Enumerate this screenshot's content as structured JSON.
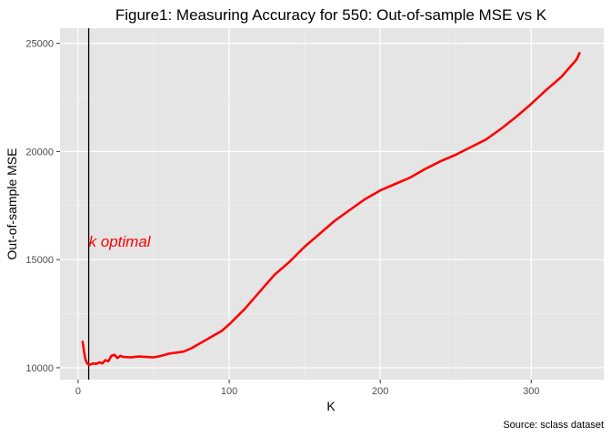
{
  "chart_data": {
    "type": "line",
    "title": "Figure1: Measuring Accuracy for 550: Out-of-sample MSE vs K",
    "xlabel": "K",
    "ylabel": "Out-of-sample MSE",
    "caption": "Source: sclass dataset",
    "xlim": [
      -12,
      348
    ],
    "ylim": [
      9450,
      25700
    ],
    "x_ticks": [
      0,
      100,
      200,
      300
    ],
    "y_ticks": [
      10000,
      15000,
      20000,
      25000
    ],
    "x_tick_labels": [
      "0",
      "100",
      "200",
      "300"
    ],
    "y_tick_labels": [
      "10000",
      "15000",
      "20000",
      "25000"
    ],
    "grid": true,
    "background": "#e5e5e5",
    "line_color": "#ff0000",
    "vline": {
      "x": 7,
      "color": "#000000"
    },
    "annotation": {
      "text": "k optimal",
      "x": 7,
      "y": 15850,
      "color": "#ff0000"
    },
    "series": [
      {
        "x": [
          3,
          4,
          5,
          6,
          7,
          8,
          10,
          12,
          14,
          16,
          18,
          20,
          22,
          24,
          26,
          28,
          30,
          35,
          40,
          45,
          50,
          55,
          60,
          65,
          70,
          75,
          80,
          85,
          90,
          95,
          100,
          110,
          120,
          130,
          140,
          150,
          160,
          170,
          180,
          190,
          200,
          210,
          220,
          230,
          240,
          250,
          260,
          270,
          280,
          290,
          300,
          310,
          320,
          330,
          332
        ],
        "y": [
          11200,
          10700,
          10350,
          10200,
          10150,
          10150,
          10200,
          10180,
          10250,
          10200,
          10350,
          10300,
          10550,
          10600,
          10450,
          10550,
          10500,
          10480,
          10520,
          10500,
          10480,
          10550,
          10650,
          10700,
          10750,
          10900,
          11100,
          11300,
          11500,
          11700,
          12000,
          12700,
          13500,
          14300,
          14900,
          15600,
          16200,
          16800,
          17300,
          17800,
          18200,
          18500,
          18800,
          19200,
          19550,
          19850,
          20200,
          20550,
          21050,
          21600,
          22200,
          22850,
          23450,
          24250,
          24550
        ]
      }
    ]
  }
}
